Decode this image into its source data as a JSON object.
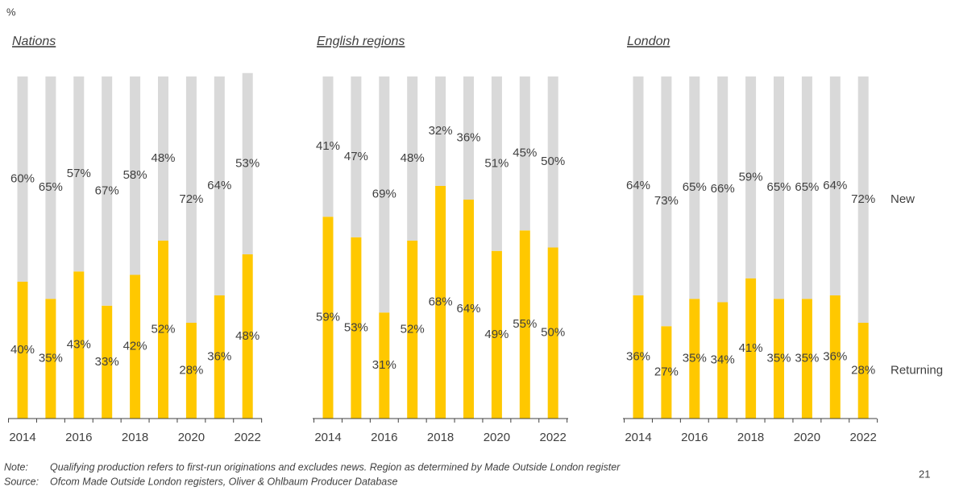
{
  "unit": "%",
  "chart_data": [
    {
      "type": "bar",
      "title": "Nations",
      "categories": [
        "2014",
        null,
        "2016",
        null,
        "2018",
        null,
        "2020",
        null,
        "2022"
      ],
      "ylim": [
        0,
        100
      ],
      "series": [
        {
          "color": "#ffc800",
          "values": [
            40,
            35,
            43,
            33,
            42,
            52,
            28,
            36,
            48
          ],
          "value_labels": [
            "40%",
            "35%",
            "43%",
            "33%",
            "42%",
            "52%",
            "28%",
            "36%",
            "48%"
          ]
        },
        {
          "color": "#d9d9d9",
          "values": [
            60,
            65,
            57,
            67,
            58,
            48,
            72,
            64,
            53
          ],
          "value_labels": [
            "60%",
            "65%",
            "57%",
            "67%",
            "58%",
            "48%",
            "72%",
            "64%",
            "53%"
          ]
        }
      ]
    },
    {
      "type": "bar",
      "title": "English regions",
      "categories": [
        "2014",
        null,
        "2016",
        null,
        "2018",
        null,
        "2020",
        null,
        "2022"
      ],
      "ylim": [
        0,
        100
      ],
      "series": [
        {
          "color": "#ffc800",
          "values": [
            59,
            53,
            31,
            52,
            68,
            64,
            49,
            55,
            50
          ],
          "value_labels": [
            "59%",
            "53%",
            "31%",
            "52%",
            "68%",
            "64%",
            "49%",
            "55%",
            "50%"
          ]
        },
        {
          "color": "#d9d9d9",
          "values": [
            41,
            47,
            69,
            48,
            32,
            36,
            51,
            45,
            50
          ],
          "value_labels": [
            "41%",
            "47%",
            "69%",
            "48%",
            "32%",
            "36%",
            "51%",
            "45%",
            "50%"
          ]
        }
      ]
    },
    {
      "type": "bar",
      "title": "London",
      "categories": [
        "2014",
        null,
        "2016",
        null,
        "2018",
        null,
        "2020",
        null,
        "2022"
      ],
      "ylim": [
        0,
        100
      ],
      "series": [
        {
          "name": "Returning",
          "color": "#ffc800",
          "values": [
            36,
            27,
            35,
            34,
            41,
            35,
            35,
            36,
            28
          ],
          "value_labels": [
            "36%",
            "27%",
            "35%",
            "34%",
            "41%",
            "35%",
            "35%",
            "36%",
            "28%"
          ]
        },
        {
          "name": "New",
          "color": "#d9d9d9",
          "values": [
            64,
            73,
            65,
            66,
            59,
            65,
            65,
            64,
            72
          ],
          "value_labels": [
            "64%",
            "73%",
            "65%",
            "66%",
            "59%",
            "65%",
            "65%",
            "64%",
            "72%"
          ]
        }
      ]
    }
  ],
  "notes": [
    {
      "label": "Note:",
      "text": "Qualifying production refers to first-run originations and excludes news. Region as determined by Made Outside London register"
    },
    {
      "label": "Source:",
      "text": "Ofcom Made Outside London registers, Oliver & Ohlbaum Producer Database"
    }
  ],
  "page_number": "21"
}
